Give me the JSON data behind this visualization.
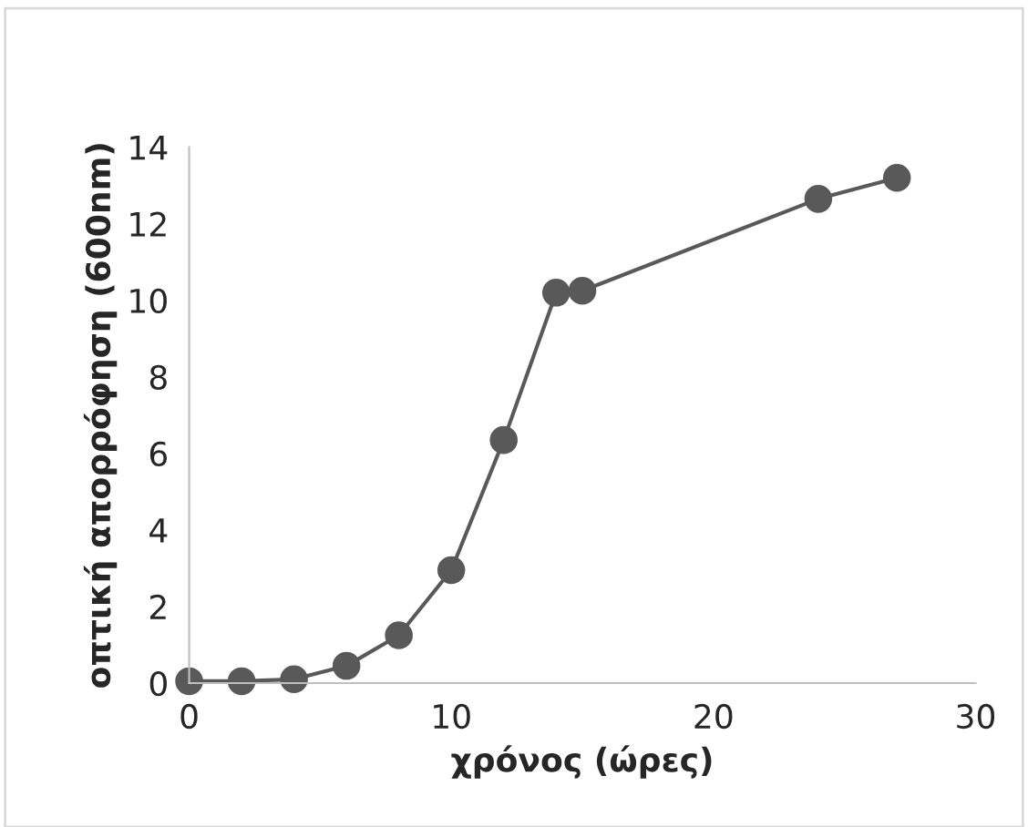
{
  "chart_data": {
    "type": "line",
    "xlabel": "χρόνος (ώρες)",
    "ylabel": "οπτική απορρόφηση (600nm)",
    "x": [
      0,
      2,
      4,
      6,
      8,
      10,
      12,
      14,
      15,
      24,
      27
    ],
    "series": [
      {
        "color": "#595959",
        "values": [
          0.05,
          0.05,
          0.1,
          0.45,
          1.25,
          2.95,
          6.35,
          10.2,
          10.25,
          12.65,
          13.2
        ]
      }
    ],
    "marker": "circle",
    "line_style": "solid",
    "xlim": [
      0,
      30
    ],
    "xticks": [
      0,
      10,
      20,
      30
    ],
    "ylim": [
      0,
      14
    ],
    "yticks": [
      0,
      2,
      4,
      6,
      8,
      10,
      12,
      14
    ],
    "grid": false,
    "legend": false
  }
}
